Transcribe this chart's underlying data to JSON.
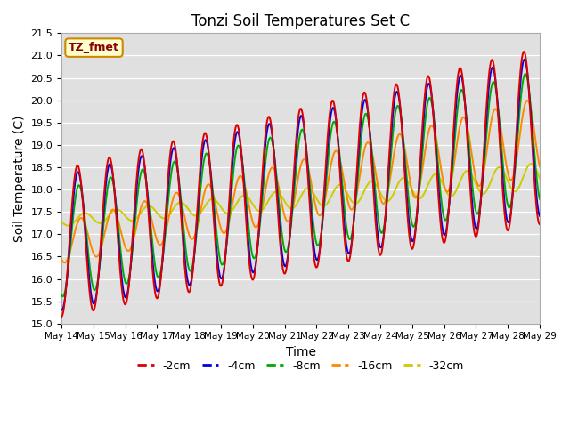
{
  "title": "Tonzi Soil Temperatures Set C",
  "xlabel": "Time",
  "ylabel": "Soil Temperature (C)",
  "ylim": [
    15.0,
    21.5
  ],
  "yticks": [
    15.0,
    15.5,
    16.0,
    16.5,
    17.0,
    17.5,
    18.0,
    18.5,
    19.0,
    19.5,
    20.0,
    20.5,
    21.0,
    21.5
  ],
  "xtick_labels": [
    "May 14",
    "May 15",
    "May 16",
    "May 17",
    "May 18",
    "May 19",
    "May 20",
    "May 21",
    "May 22",
    "May 23",
    "May 24",
    "May 25",
    "May 26",
    "May 27",
    "May 28",
    "May 29"
  ],
  "colors": {
    "-2cm": "#dd0000",
    "-4cm": "#0000dd",
    "-8cm": "#00aa00",
    "-16cm": "#ff8800",
    "-32cm": "#cccc00"
  },
  "legend_label": "TZ_fmet",
  "legend_bg": "#ffffcc",
  "legend_border": "#cc8800",
  "plot_bg": "#e0e0e0",
  "line_width": 1.4
}
